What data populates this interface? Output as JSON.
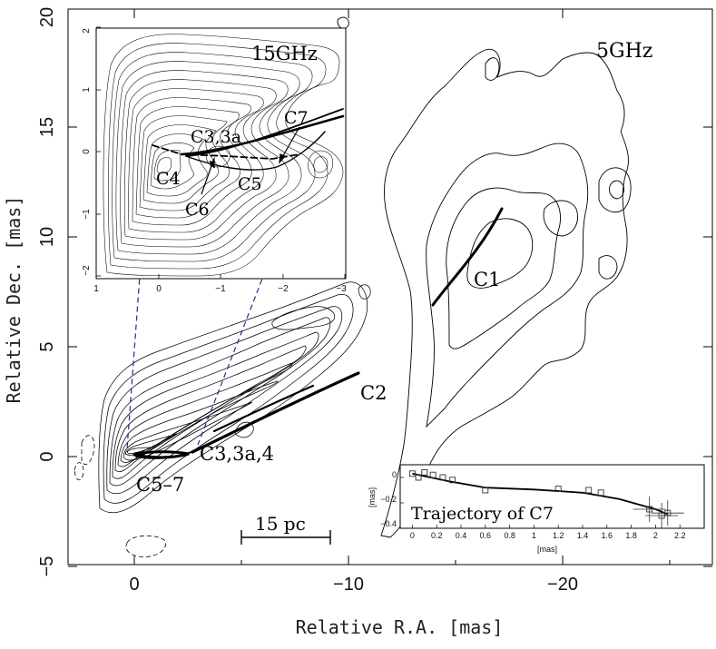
{
  "main_panel": {
    "xlabel": "Relative R.A. [mas]",
    "ylabel": "Relative Dec. [mas]",
    "xticks": [
      "0",
      "−10",
      "−20"
    ],
    "yticks": [
      "−5",
      "0",
      "5",
      "10",
      "15",
      "20"
    ],
    "freq_label": "5GHz",
    "scalebar_label": "15 pc",
    "components": [
      "C1",
      "C2",
      "C3,3a,4",
      "C5–7"
    ]
  },
  "inset_15ghz": {
    "freq_label": "15GHz",
    "xticks": [
      "1",
      "0",
      "−1",
      "−2",
      "−3"
    ],
    "yticks": [
      "2",
      "1",
      "0",
      "−1",
      "−2"
    ],
    "components": [
      "C7",
      "C3,3a",
      "C4",
      "C5",
      "C6"
    ]
  },
  "inset_trajectory": {
    "title": "Trajectory of C7",
    "xlabel": "[mas]",
    "ylabel": "[mas]",
    "xticks": [
      "0",
      "0.2",
      "0.4",
      "0.6",
      "0.8",
      "1",
      "1.2",
      "1.4",
      "1.6",
      "1.8",
      "2",
      "2.2"
    ],
    "yticks": [
      "0",
      "−0.2",
      "−0.4"
    ]
  },
  "chart_data": {
    "type": "scatter",
    "title": "Trajectory of C7",
    "xlabel": "[mas]",
    "ylabel": "[mas]",
    "xlim": [
      -0.1,
      2.4
    ],
    "ylim": [
      -0.4,
      0.1
    ],
    "series": [
      {
        "points": [
          [
            0.0,
            0.03
          ],
          [
            0.05,
            0.0
          ],
          [
            0.1,
            0.04
          ],
          [
            0.17,
            0.02
          ],
          [
            0.25,
            0.0
          ],
          [
            0.33,
            -0.02
          ],
          [
            0.6,
            -0.1
          ],
          [
            1.2,
            -0.09
          ],
          [
            1.45,
            -0.1
          ],
          [
            1.55,
            -0.12
          ],
          [
            1.95,
            -0.25
          ],
          [
            2.05,
            -0.3
          ],
          [
            2.1,
            -0.28
          ]
        ]
      }
    ],
    "fit_curve": [
      [
        0.0,
        0.03
      ],
      [
        0.3,
        -0.03
      ],
      [
        0.6,
        -0.08
      ],
      [
        1.0,
        -0.095
      ],
      [
        1.4,
        -0.12
      ],
      [
        1.7,
        -0.17
      ],
      [
        2.0,
        -0.25
      ],
      [
        2.1,
        -0.29
      ]
    ]
  }
}
